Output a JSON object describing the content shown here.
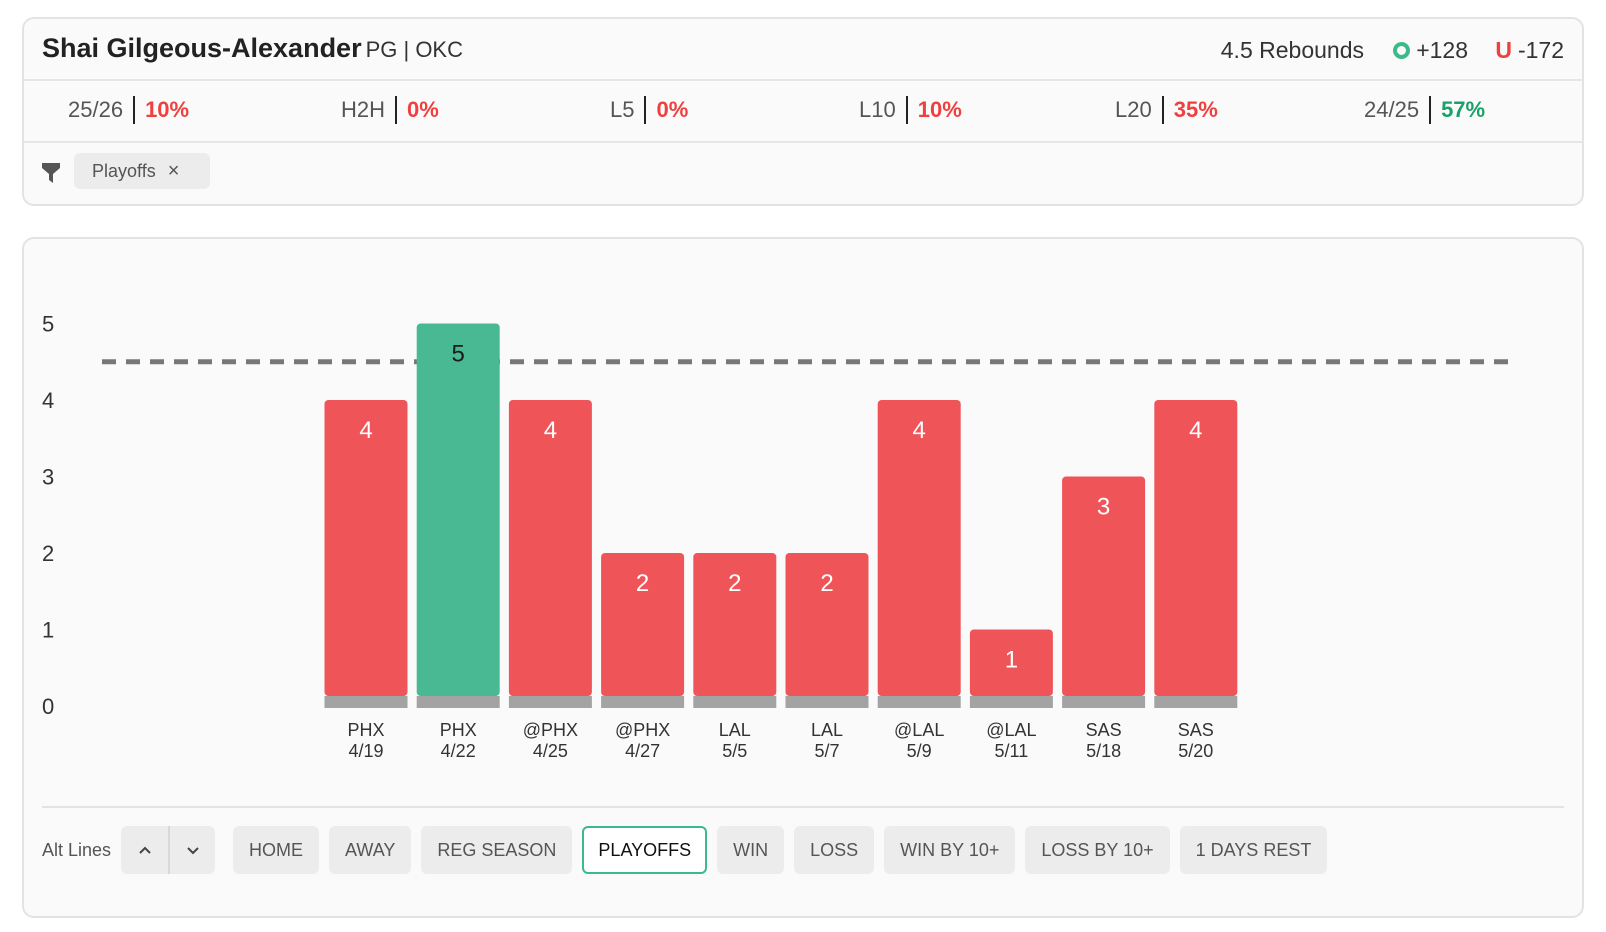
{
  "player": {
    "name": "Shai Gilgeous-Alexander",
    "meta": "PG | OKC"
  },
  "prop": {
    "label": "4.5 Rebounds",
    "over_odds": "+128",
    "under_icon": "U",
    "under_odds": "-172"
  },
  "stats": [
    {
      "label": "25/26",
      "value": "10%",
      "color": "#ef3f3f"
    },
    {
      "label": "H2H",
      "value": "0%",
      "color": "#ef3f3f"
    },
    {
      "label": "L5",
      "value": "0%",
      "color": "#ef3f3f"
    },
    {
      "label": "L10",
      "value": "10%",
      "color": "#ef3f3f"
    },
    {
      "label": "L20",
      "value": "35%",
      "color": "#ef3f3f"
    },
    {
      "label": "24/25",
      "value": "57%",
      "color": "#1aa06a"
    }
  ],
  "filters": {
    "active_chip": "Playoffs",
    "icon": "filter-icon"
  },
  "chart_data": {
    "type": "bar",
    "categories": [
      "PHX 4/19",
      "PHX 4/22",
      "@PHX 4/25",
      "@PHX 4/27",
      "LAL 5/5",
      "LAL 5/7",
      "@LAL 5/9",
      "@LAL 5/11",
      "SAS 5/18",
      "SAS 5/20"
    ],
    "opponents": [
      "PHX",
      "PHX",
      "@PHX",
      "@PHX",
      "LAL",
      "LAL",
      "@LAL",
      "@LAL",
      "SAS",
      "SAS"
    ],
    "dates": [
      "4/19",
      "4/22",
      "4/25",
      "4/27",
      "5/5",
      "5/7",
      "5/9",
      "5/11",
      "5/18",
      "5/20"
    ],
    "values": [
      4,
      5,
      4,
      2,
      2,
      2,
      4,
      1,
      3,
      4
    ],
    "line": 4.5,
    "ylim": [
      0,
      5
    ],
    "yticks": [
      0,
      1,
      2,
      3,
      4,
      5
    ],
    "colors": {
      "over": "#48b993",
      "under": "#ef5558",
      "base": "#a3a3a3",
      "line": "#777777"
    }
  },
  "toolbar": {
    "alt_lines_label": "Alt Lines",
    "buttons": [
      "HOME",
      "AWAY",
      "REG SEASON",
      "PLAYOFFS",
      "WIN",
      "LOSS",
      "WIN BY 10+",
      "LOSS BY 10+",
      "1 DAYS REST"
    ],
    "active": "PLAYOFFS"
  }
}
